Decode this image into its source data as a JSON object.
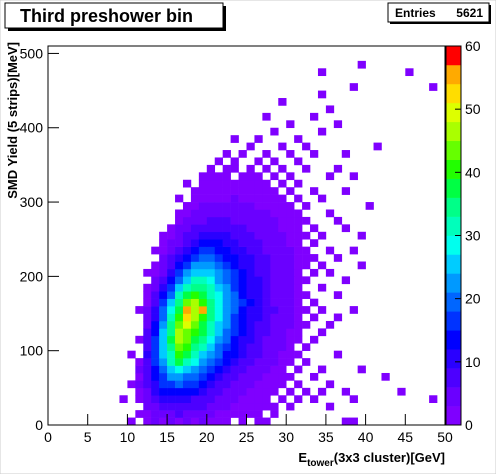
{
  "chart_data": {
    "type": "heatmap2d",
    "title": "Third preshower bin",
    "stats": {
      "label": "Entries",
      "value": 5621
    },
    "ylabel": "SMD Yield (5 strips)[MeV]",
    "xlabel": {
      "base": "E",
      "sub": "tower",
      "rest": "(3x3 cluster)[GeV]"
    },
    "xlim": [
      0,
      50
    ],
    "xticks": [
      0,
      5,
      10,
      15,
      20,
      25,
      30,
      35,
      40,
      45,
      50
    ],
    "ylim": [
      0,
      510
    ],
    "yticks": [
      0,
      100,
      200,
      300,
      400,
      500
    ],
    "zlim": [
      0,
      60
    ],
    "zticks": [
      0,
      10,
      20,
      30,
      40,
      50,
      60
    ],
    "xbin_width": 1,
    "ybin_width": 10,
    "palette": [
      "#7f00ff",
      "#6a00ff",
      "#4c00ff",
      "#2a00ff",
      "#0000ff",
      "#0033ff",
      "#0066ff",
      "#0099ff",
      "#00ccff",
      "#00ffee",
      "#00ffbb",
      "#00ff88",
      "#00ff44",
      "#22ff00",
      "#66ff00",
      "#aaff00",
      "#ddff00",
      "#ffdd00",
      "#ffaa00",
      "#ff0000"
    ],
    "y": [
      0,
      10,
      20,
      30,
      40,
      50,
      60,
      70,
      80,
      90,
      100,
      110,
      120,
      130,
      140,
      150,
      160,
      170,
      180,
      190,
      200,
      210,
      220,
      230,
      240,
      250,
      260,
      270,
      280,
      290,
      300,
      310,
      320,
      330,
      340,
      350,
      360,
      370,
      380,
      390,
      400,
      410,
      420,
      430,
      440,
      450,
      460,
      470,
      480,
      490
    ],
    "x": [
      [
        10,
        12,
        13,
        14,
        15,
        16,
        17,
        18,
        19,
        20,
        21,
        22,
        24,
        26,
        27,
        37,
        38
      ],
      [
        11,
        12,
        13,
        14,
        15,
        16,
        17,
        18,
        19,
        20,
        21,
        22,
        23,
        24,
        25,
        26,
        28
      ],
      [
        12,
        13,
        14,
        15,
        16,
        17,
        18,
        19,
        20,
        21,
        22,
        23,
        24,
        25,
        26,
        27,
        28,
        30,
        35
      ],
      [
        9,
        11,
        12,
        13,
        14,
        15,
        16,
        17,
        18,
        19,
        20,
        21,
        22,
        23,
        24,
        25,
        26,
        27,
        29,
        31,
        33,
        38,
        48
      ],
      [
        11,
        12,
        13,
        14,
        15,
        16,
        17,
        18,
        19,
        20,
        21,
        22,
        23,
        24,
        25,
        26,
        27,
        28,
        30,
        32,
        34,
        37,
        44
      ],
      [
        10,
        11,
        12,
        13,
        14,
        15,
        16,
        17,
        18,
        19,
        20,
        21,
        22,
        23,
        24,
        25,
        26,
        27,
        28,
        29,
        31,
        35
      ],
      [
        11,
        12,
        13,
        14,
        15,
        16,
        17,
        18,
        19,
        20,
        21,
        22,
        23,
        24,
        25,
        26,
        27,
        28,
        29,
        30,
        33,
        42
      ],
      [
        11,
        12,
        13,
        14,
        15,
        16,
        17,
        18,
        19,
        20,
        21,
        22,
        23,
        24,
        25,
        26,
        27,
        28,
        29,
        31,
        34,
        39
      ],
      [
        11,
        12,
        13,
        14,
        15,
        16,
        17,
        18,
        19,
        20,
        21,
        22,
        23,
        24,
        25,
        26,
        27,
        28,
        29,
        30,
        32
      ],
      [
        10,
        12,
        13,
        14,
        15,
        16,
        17,
        18,
        19,
        20,
        21,
        22,
        23,
        24,
        25,
        26,
        27,
        28,
        29,
        30,
        31,
        36
      ],
      [
        12,
        13,
        14,
        15,
        16,
        17,
        18,
        19,
        20,
        21,
        22,
        23,
        24,
        25,
        26,
        27,
        28,
        29,
        30,
        32
      ],
      [
        11,
        12,
        13,
        14,
        15,
        16,
        17,
        18,
        19,
        20,
        21,
        22,
        23,
        24,
        25,
        26,
        27,
        28,
        29,
        30,
        31,
        33
      ],
      [
        12,
        13,
        14,
        15,
        16,
        17,
        18,
        19,
        20,
        21,
        22,
        23,
        24,
        25,
        26,
        27,
        28,
        29,
        30,
        31,
        34
      ],
      [
        12,
        13,
        14,
        15,
        16,
        17,
        18,
        19,
        20,
        21,
        22,
        23,
        24,
        25,
        26,
        27,
        28,
        29,
        30,
        31,
        32,
        35
      ],
      [
        12,
        13,
        14,
        15,
        16,
        17,
        18,
        19,
        20,
        21,
        22,
        23,
        24,
        25,
        26,
        27,
        28,
        29,
        30,
        31,
        33,
        36
      ],
      [
        11,
        12,
        13,
        14,
        15,
        16,
        17,
        18,
        19,
        20,
        21,
        22,
        23,
        24,
        25,
        26,
        27,
        28,
        29,
        30,
        31,
        32,
        34,
        38
      ],
      [
        12,
        13,
        14,
        15,
        16,
        17,
        18,
        19,
        20,
        21,
        22,
        23,
        24,
        25,
        26,
        27,
        28,
        29,
        30,
        31,
        33
      ],
      [
        12,
        13,
        14,
        15,
        16,
        17,
        18,
        19,
        20,
        21,
        22,
        23,
        24,
        25,
        26,
        27,
        28,
        29,
        30,
        31,
        32,
        36
      ],
      [
        12,
        13,
        14,
        15,
        16,
        17,
        18,
        19,
        20,
        21,
        22,
        23,
        24,
        25,
        26,
        27,
        28,
        29,
        30,
        31,
        34
      ],
      [
        13,
        14,
        15,
        16,
        17,
        18,
        19,
        20,
        21,
        22,
        23,
        24,
        25,
        26,
        27,
        28,
        29,
        30,
        31,
        32,
        37
      ],
      [
        12,
        13,
        14,
        15,
        16,
        17,
        18,
        19,
        20,
        21,
        22,
        23,
        24,
        25,
        26,
        27,
        28,
        29,
        30,
        31,
        33,
        35
      ],
      [
        13,
        14,
        15,
        16,
        17,
        18,
        19,
        20,
        21,
        22,
        23,
        24,
        25,
        26,
        27,
        28,
        29,
        30,
        31,
        32,
        34,
        39
      ],
      [
        14,
        15,
        16,
        17,
        18,
        19,
        20,
        21,
        22,
        23,
        24,
        25,
        26,
        27,
        28,
        29,
        30,
        31,
        32,
        33,
        36
      ],
      [
        13,
        14,
        15,
        16,
        17,
        18,
        19,
        20,
        21,
        22,
        23,
        24,
        25,
        26,
        27,
        28,
        29,
        30,
        31,
        32,
        35,
        38
      ],
      [
        14,
        15,
        16,
        17,
        18,
        19,
        20,
        21,
        22,
        23,
        24,
        25,
        26,
        27,
        28,
        29,
        30,
        31,
        33
      ],
      [
        14,
        15,
        16,
        17,
        18,
        19,
        20,
        21,
        22,
        23,
        24,
        25,
        26,
        27,
        28,
        29,
        30,
        31,
        32,
        34,
        39
      ],
      [
        15,
        16,
        17,
        18,
        19,
        20,
        21,
        22,
        23,
        24,
        25,
        26,
        27,
        28,
        29,
        30,
        31,
        33,
        37
      ],
      [
        16,
        17,
        18,
        19,
        20,
        21,
        22,
        23,
        24,
        25,
        26,
        27,
        28,
        29,
        30,
        31,
        32,
        36
      ],
      [
        16,
        17,
        18,
        19,
        20,
        21,
        22,
        23,
        24,
        25,
        26,
        27,
        28,
        29,
        30,
        31,
        35
      ],
      [
        17,
        18,
        19,
        20,
        21,
        22,
        23,
        24,
        25,
        26,
        27,
        28,
        29,
        30,
        32,
        40
      ],
      [
        16,
        18,
        19,
        20,
        21,
        22,
        23,
        24,
        25,
        26,
        27,
        28,
        29,
        31,
        34
      ],
      [
        18,
        19,
        20,
        21,
        22,
        23,
        24,
        25,
        26,
        27,
        28,
        30,
        33,
        37
      ],
      [
        17,
        19,
        20,
        21,
        22,
        23,
        24,
        25,
        26,
        27,
        29,
        31
      ],
      [
        19,
        20,
        21,
        22,
        24,
        25,
        26,
        28,
        30,
        35,
        38
      ],
      [
        20,
        22,
        23,
        25,
        27,
        29,
        32,
        36
      ],
      [
        21,
        23,
        26,
        28,
        31
      ],
      [
        22,
        24,
        27,
        30,
        33,
        37
      ],
      [
        25,
        29,
        32,
        41
      ],
      [
        23,
        26,
        31
      ],
      [
        28,
        34
      ],
      [
        30,
        36
      ],
      [
        27,
        33
      ],
      [
        35
      ],
      [
        29
      ],
      [
        34
      ],
      [
        38,
        48
      ],
      [],
      [
        34,
        45
      ],
      [
        39
      ],
      []
    ],
    "values": [
      [
        1,
        2,
        3,
        2,
        3,
        2,
        4,
        2,
        3,
        2,
        1,
        1,
        1,
        1,
        1,
        1,
        1
      ],
      [
        1,
        2,
        4,
        5,
        4,
        6,
        5,
        4,
        5,
        3,
        2,
        2,
        1,
        1,
        2,
        1,
        1
      ],
      [
        3,
        5,
        6,
        7,
        8,
        7,
        6,
        6,
        5,
        3,
        3,
        2,
        2,
        1,
        1,
        1,
        1,
        1,
        1
      ],
      [
        1,
        2,
        4,
        7,
        9,
        10,
        11,
        9,
        8,
        7,
        6,
        4,
        3,
        3,
        2,
        2,
        1,
        2,
        1,
        1,
        1,
        1,
        1
      ],
      [
        2,
        5,
        9,
        12,
        14,
        14,
        13,
        12,
        10,
        8,
        6,
        5,
        4,
        3,
        2,
        2,
        1,
        1,
        1,
        1,
        1,
        1,
        1
      ],
      [
        1,
        3,
        6,
        11,
        15,
        17,
        18,
        16,
        15,
        13,
        10,
        8,
        6,
        5,
        3,
        3,
        2,
        2,
        1,
        1,
        1,
        1
      ],
      [
        2,
        7,
        13,
        17,
        21,
        22,
        20,
        18,
        16,
        13,
        10,
        8,
        6,
        5,
        4,
        3,
        2,
        2,
        1,
        1,
        1,
        1
      ],
      [
        3,
        8,
        14,
        20,
        26,
        28,
        25,
        22,
        19,
        16,
        13,
        10,
        8,
        6,
        5,
        4,
        3,
        2,
        2,
        1,
        1,
        1
      ],
      [
        2,
        8,
        15,
        22,
        30,
        36,
        32,
        27,
        23,
        19,
        15,
        12,
        10,
        8,
        6,
        5,
        4,
        3,
        2,
        1,
        1
      ],
      [
        1,
        9,
        16,
        24,
        32,
        40,
        36,
        30,
        26,
        22,
        18,
        14,
        12,
        9,
        7,
        6,
        4,
        3,
        2,
        2,
        1,
        1
      ],
      [
        8,
        17,
        25,
        34,
        44,
        40,
        34,
        30,
        25,
        20,
        16,
        13,
        10,
        8,
        6,
        5,
        4,
        3,
        2,
        1
      ],
      [
        1,
        7,
        15,
        26,
        36,
        46,
        42,
        37,
        33,
        27,
        22,
        18,
        14,
        11,
        9,
        7,
        5,
        4,
        3,
        2,
        1,
        1
      ],
      [
        6,
        14,
        25,
        35,
        45,
        44,
        40,
        36,
        30,
        24,
        19,
        15,
        12,
        10,
        8,
        6,
        4,
        3,
        2,
        2,
        1
      ],
      [
        5,
        13,
        23,
        33,
        42,
        48,
        44,
        38,
        32,
        26,
        21,
        16,
        13,
        10,
        8,
        6,
        5,
        4,
        3,
        2,
        1,
        1
      ],
      [
        4,
        11,
        20,
        30,
        40,
        52,
        46,
        40,
        34,
        28,
        22,
        17,
        14,
        11,
        9,
        7,
        5,
        4,
        3,
        2,
        1,
        1
      ],
      [
        1,
        3,
        9,
        18,
        27,
        38,
        56,
        45,
        54,
        35,
        28,
        23,
        18,
        14,
        11,
        9,
        7,
        6,
        4,
        3,
        2,
        1,
        1,
        1
      ],
      [
        2,
        7,
        15,
        24,
        34,
        42,
        46,
        40,
        34,
        28,
        23,
        18,
        15,
        12,
        9,
        7,
        5,
        4,
        3,
        2,
        1
      ],
      [
        2,
        6,
        12,
        20,
        30,
        36,
        40,
        38,
        32,
        27,
        22,
        18,
        14,
        11,
        9,
        7,
        5,
        4,
        3,
        2,
        1,
        1
      ],
      [
        1,
        4,
        10,
        17,
        25,
        31,
        35,
        34,
        30,
        25,
        21,
        17,
        14,
        11,
        9,
        7,
        5,
        4,
        3,
        2,
        1
      ],
      [
        3,
        7,
        14,
        20,
        26,
        30,
        30,
        27,
        23,
        20,
        16,
        13,
        11,
        9,
        7,
        5,
        4,
        3,
        2,
        1,
        1
      ],
      [
        1,
        2,
        5,
        11,
        16,
        21,
        25,
        26,
        24,
        21,
        18,
        15,
        12,
        10,
        8,
        6,
        5,
        4,
        3,
        2,
        1,
        1
      ],
      [
        1,
        4,
        8,
        13,
        17,
        21,
        22,
        21,
        19,
        16,
        14,
        11,
        9,
        8,
        6,
        5,
        4,
        3,
        2,
        1,
        1,
        1
      ],
      [
        3,
        6,
        10,
        14,
        17,
        18,
        18,
        16,
        14,
        12,
        10,
        9,
        7,
        6,
        5,
        4,
        3,
        2,
        2,
        1,
        1
      ],
      [
        1,
        2,
        4,
        7,
        11,
        14,
        15,
        15,
        14,
        12,
        11,
        9,
        8,
        7,
        5,
        4,
        3,
        3,
        2,
        1,
        1,
        1
      ],
      [
        1,
        3,
        5,
        8,
        11,
        12,
        13,
        12,
        11,
        10,
        8,
        7,
        6,
        5,
        4,
        3,
        2,
        2,
        1
      ],
      [
        1,
        2,
        4,
        6,
        8,
        10,
        10,
        10,
        9,
        8,
        7,
        6,
        5,
        4,
        4,
        3,
        2,
        2,
        1,
        1,
        1
      ],
      [
        1,
        3,
        4,
        6,
        7,
        8,
        8,
        7,
        7,
        6,
        5,
        4,
        4,
        3,
        2,
        2,
        1,
        1,
        1
      ],
      [
        2,
        3,
        4,
        5,
        6,
        6,
        6,
        5,
        5,
        4,
        4,
        3,
        3,
        2,
        2,
        1,
        1,
        1
      ],
      [
        1,
        2,
        3,
        4,
        4,
        5,
        4,
        4,
        4,
        3,
        3,
        3,
        2,
        2,
        1,
        1,
        1
      ],
      [
        1,
        2,
        3,
        3,
        3,
        3,
        3,
        3,
        3,
        2,
        2,
        2,
        1,
        1,
        1,
        1
      ],
      [
        1,
        1,
        2,
        2,
        2,
        2,
        3,
        2,
        2,
        2,
        2,
        1,
        1,
        1,
        1
      ],
      [
        1,
        2,
        2,
        2,
        2,
        2,
        2,
        2,
        2,
        1,
        1,
        1,
        1,
        1
      ],
      [
        1,
        1,
        2,
        1,
        2,
        1,
        2,
        1,
        1,
        1,
        1,
        1
      ],
      [
        1,
        1,
        1,
        1,
        1,
        1,
        1,
        1,
        1,
        1,
        1
      ],
      [
        1,
        1,
        1,
        1,
        1,
        1,
        1,
        1
      ],
      [
        1,
        1,
        1,
        1,
        1
      ],
      [
        1,
        1,
        1,
        1,
        1,
        1
      ],
      [
        1,
        1,
        1,
        1
      ],
      [
        1,
        1,
        1
      ],
      [
        1,
        1
      ],
      [
        1,
        1
      ],
      [
        1,
        1
      ],
      [
        1
      ],
      [
        1
      ],
      [
        1
      ],
      [
        1,
        1
      ],
      [],
      [
        1,
        1
      ],
      [
        1
      ],
      []
    ]
  }
}
